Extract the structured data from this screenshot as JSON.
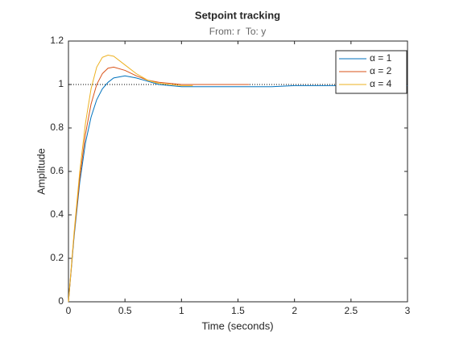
{
  "chart_data": {
    "type": "line",
    "title": "Setpoint tracking",
    "subtitle": "From: r  To: y",
    "x_label": "Time (seconds)",
    "y_label": "Amplitude",
    "x": [
      0,
      0.05,
      0.1,
      0.15,
      0.2,
      0.25,
      0.3,
      0.35,
      0.4,
      0.5,
      0.6,
      0.7,
      0.8,
      0.9,
      1.0,
      1.1,
      1.2,
      1.4,
      1.6,
      1.8,
      2.0,
      2.5,
      3.0
    ],
    "series": [
      {
        "name": "α = 1",
        "color": "#0072bd",
        "values": [
          0,
          0.3,
          0.55,
          0.73,
          0.85,
          0.93,
          0.98,
          1.01,
          1.03,
          1.04,
          1.03,
          1.015,
          1.0,
          0.995,
          0.99,
          0.99,
          0.99,
          0.99,
          0.99,
          0.99,
          0.995,
          0.995,
          0.995
        ]
      },
      {
        "name": "α = 2",
        "color": "#d95319",
        "values": [
          0,
          0.31,
          0.57,
          0.77,
          0.91,
          1.0,
          1.05,
          1.075,
          1.08,
          1.065,
          1.04,
          1.02,
          1.01,
          1.005,
          1.0,
          1.0,
          1.0,
          1.0,
          1.0,
          null,
          null,
          null,
          null
        ]
      },
      {
        "name": "α = 4",
        "color": "#edb120",
        "values": [
          0,
          0.32,
          0.6,
          0.82,
          0.98,
          1.08,
          1.125,
          1.135,
          1.13,
          1.09,
          1.05,
          1.02,
          1.005,
          1.0,
          0.995,
          0.995,
          null,
          null,
          null,
          null,
          null,
          null,
          null
        ]
      }
    ],
    "steady_state": 1,
    "xlim": [
      0,
      3
    ],
    "xticks": [
      0,
      0.5,
      1,
      1.5,
      2,
      2.5,
      3
    ],
    "ylim": [
      0,
      1.2
    ],
    "yticks": [
      0,
      0.2,
      0.4,
      0.6,
      0.8,
      1,
      1.2
    ],
    "legend": "top-right"
  }
}
